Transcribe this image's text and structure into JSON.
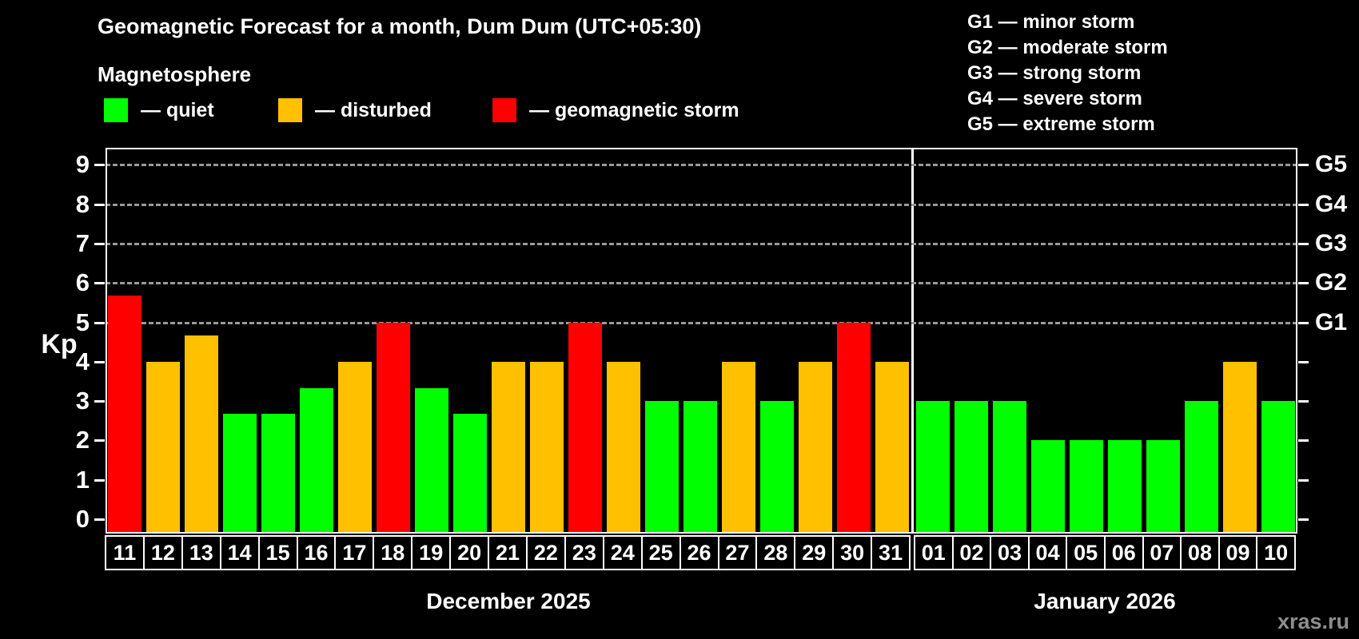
{
  "title": "Geomagnetic Forecast for a month, Dum Dum (UTC+05:30)",
  "subtitle": "Magnetosphere",
  "legend": {
    "quiet": {
      "swatch_color": "#00ff00",
      "label": "— quiet"
    },
    "disturbed": {
      "swatch_color": "#ffc000",
      "label": "— disturbed"
    },
    "storm": {
      "swatch_color": "#ff0000",
      "label": "— geomagnetic storm"
    }
  },
  "g_legend": [
    "G1 — minor storm",
    "G2 — moderate storm",
    "G3 — strong storm",
    "G4 — severe storm",
    "G5 — extreme storm"
  ],
  "watermark": "xras.ru",
  "chart_data": {
    "type": "bar",
    "title": "Geomagnetic Forecast for a month, Dum Dum (UTC+05:30)",
    "ylabel": "Kp",
    "ylim": [
      0,
      9
    ],
    "y_ticks": [
      0,
      1,
      2,
      3,
      4,
      5,
      6,
      7,
      8,
      9
    ],
    "gridlines_at": [
      5,
      6,
      7,
      8,
      9
    ],
    "grid": "dashed horizontal at G-storm levels only",
    "legend_position": "top",
    "right_axis_labels": [
      {
        "value": 5,
        "label": "G1"
      },
      {
        "value": 6,
        "label": "G2"
      },
      {
        "value": 7,
        "label": "G3"
      },
      {
        "value": 8,
        "label": "G4"
      },
      {
        "value": 9,
        "label": "G5"
      }
    ],
    "status_colors": {
      "quiet": "#00ff00",
      "disturbed": "#ffc000",
      "storm": "#ff0000"
    },
    "series": [
      {
        "month": "December 2025",
        "points": [
          {
            "day": "11",
            "kp": 5.67,
            "status": "storm"
          },
          {
            "day": "12",
            "kp": 4,
            "status": "disturbed"
          },
          {
            "day": "13",
            "kp": 4.67,
            "status": "disturbed"
          },
          {
            "day": "14",
            "kp": 2.67,
            "status": "quiet"
          },
          {
            "day": "15",
            "kp": 2.67,
            "status": "quiet"
          },
          {
            "day": "16",
            "kp": 3.33,
            "status": "quiet"
          },
          {
            "day": "17",
            "kp": 4,
            "status": "disturbed"
          },
          {
            "day": "18",
            "kp": 5,
            "status": "storm"
          },
          {
            "day": "19",
            "kp": 3.33,
            "status": "quiet"
          },
          {
            "day": "20",
            "kp": 2.67,
            "status": "quiet"
          },
          {
            "day": "21",
            "kp": 4,
            "status": "disturbed"
          },
          {
            "day": "22",
            "kp": 4,
            "status": "disturbed"
          },
          {
            "day": "23",
            "kp": 5,
            "status": "storm"
          },
          {
            "day": "24",
            "kp": 4,
            "status": "disturbed"
          },
          {
            "day": "25",
            "kp": 3,
            "status": "quiet"
          },
          {
            "day": "26",
            "kp": 3,
            "status": "quiet"
          },
          {
            "day": "27",
            "kp": 4,
            "status": "disturbed"
          },
          {
            "day": "28",
            "kp": 3,
            "status": "quiet"
          },
          {
            "day": "29",
            "kp": 4,
            "status": "disturbed"
          },
          {
            "day": "30",
            "kp": 5,
            "status": "storm"
          },
          {
            "day": "31",
            "kp": 4,
            "status": "disturbed"
          }
        ]
      },
      {
        "month": "January 2026",
        "points": [
          {
            "day": "01",
            "kp": 3,
            "status": "quiet"
          },
          {
            "day": "02",
            "kp": 3,
            "status": "quiet"
          },
          {
            "day": "03",
            "kp": 3,
            "status": "quiet"
          },
          {
            "day": "04",
            "kp": 2,
            "status": "quiet"
          },
          {
            "day": "05",
            "kp": 2,
            "status": "quiet"
          },
          {
            "day": "06",
            "kp": 2,
            "status": "quiet"
          },
          {
            "day": "07",
            "kp": 2,
            "status": "quiet"
          },
          {
            "day": "08",
            "kp": 3,
            "status": "quiet"
          },
          {
            "day": "09",
            "kp": 4,
            "status": "disturbed"
          },
          {
            "day": "10",
            "kp": 3,
            "status": "quiet"
          }
        ]
      }
    ]
  }
}
